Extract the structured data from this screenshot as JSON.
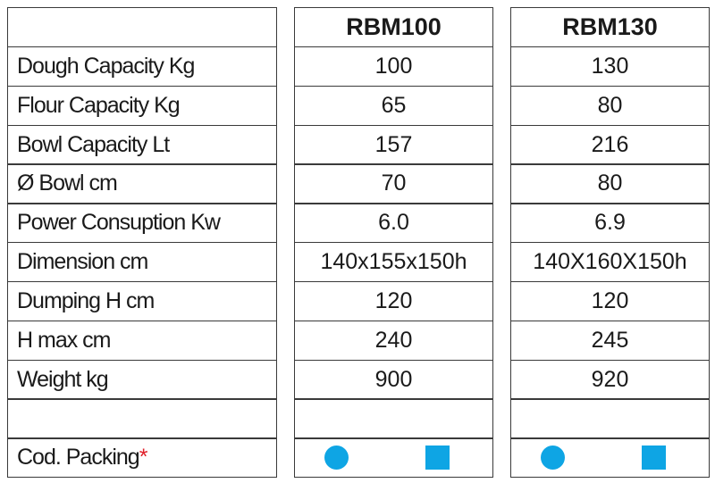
{
  "table": {
    "columns": [
      "RBM100",
      "RBM130"
    ],
    "rows": [
      {
        "label": "Dough Capacity Kg",
        "values": [
          "100",
          "130"
        ]
      },
      {
        "label": "Flour Capacity Kg",
        "values": [
          "65",
          "80"
        ]
      },
      {
        "label": "Bowl Capacity Lt",
        "values": [
          "157",
          "216"
        ]
      },
      {
        "label": "Ø Bowl cm",
        "values": [
          "70",
          "80"
        ]
      },
      {
        "label": "Power Consuption Kw",
        "values": [
          "6.0",
          "6.9"
        ]
      },
      {
        "label": "Dimension cm",
        "values": [
          "140x155x150h",
          "140X160X150h"
        ]
      },
      {
        "label": "Dumping H cm",
        "values": [
          "120",
          "120"
        ]
      },
      {
        "label": "H max cm",
        "values": [
          "240",
          "245"
        ]
      },
      {
        "label": "Weight kg",
        "values": [
          "900",
          "920"
        ]
      }
    ],
    "packing": {
      "label": "Cod. Packing",
      "marker": "*"
    }
  }
}
